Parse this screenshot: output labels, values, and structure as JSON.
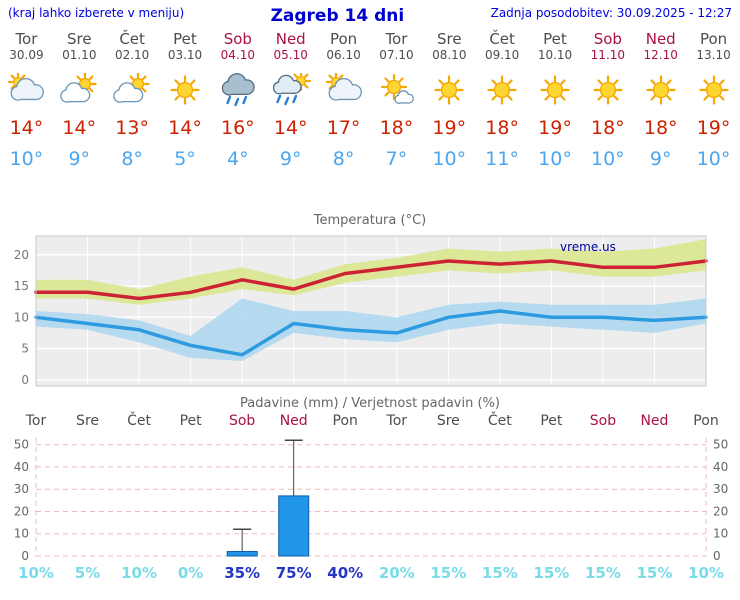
{
  "header": {
    "menu_hint": "(kraj lahko izberete v meniju)",
    "title": "Zagreb 14 dni",
    "last_update": "Zadnja posodobitev: 30.09.2025 - 12:27"
  },
  "colors": {
    "header_blue": "#0000e0",
    "title_blue": "#0000cc",
    "day_gray": "#4d4d4d",
    "weekend_red": "#aa1144",
    "max_red": "#cc2200",
    "min_blue": "#4aa6f0",
    "percent_light": "#7adce8",
    "percent_dark": "#2636c4",
    "temp_line_red": "#cc2233",
    "temp_line_blue": "#2e9ae0",
    "band_yellow": "#dce897",
    "band_blue": "#a6d4f0",
    "bar_fill": "#2196e8",
    "bar_stroke": "#0d5fa8",
    "grid_pink": "#f2b8b8",
    "watermark_navy": "#000099"
  },
  "forecast_days": [
    {
      "name": "Tor",
      "date": "30.09",
      "weekend": false,
      "icon": "cloudy",
      "tmax": "14°",
      "tmin": "10°"
    },
    {
      "name": "Sre",
      "date": "01.10",
      "weekend": false,
      "icon": "partly-cloudy",
      "tmax": "14°",
      "tmin": "9°"
    },
    {
      "name": "Čet",
      "date": "02.10",
      "weekend": false,
      "icon": "partly-cloudy",
      "tmax": "13°",
      "tmin": "8°"
    },
    {
      "name": "Pet",
      "date": "03.10",
      "weekend": false,
      "icon": "sunny",
      "tmax": "14°",
      "tmin": "5°"
    },
    {
      "name": "Sob",
      "date": "04.10",
      "weekend": true,
      "icon": "rain",
      "tmax": "16°",
      "tmin": "4°"
    },
    {
      "name": "Ned",
      "date": "05.10",
      "weekend": true,
      "icon": "showers",
      "tmax": "14°",
      "tmin": "9°"
    },
    {
      "name": "Pon",
      "date": "06.10",
      "weekend": false,
      "icon": "cloudy",
      "tmax": "17°",
      "tmin": "8°"
    },
    {
      "name": "Tor",
      "date": "07.10",
      "weekend": false,
      "icon": "mostly-sunny",
      "tmax": "18°",
      "tmin": "7°"
    },
    {
      "name": "Sre",
      "date": "08.10",
      "weekend": false,
      "icon": "sunny",
      "tmax": "19°",
      "tmin": "10°"
    },
    {
      "name": "Čet",
      "date": "09.10",
      "weekend": false,
      "icon": "sunny",
      "tmax": "18°",
      "tmin": "11°"
    },
    {
      "name": "Pet",
      "date": "10.10",
      "weekend": false,
      "icon": "sunny",
      "tmax": "19°",
      "tmin": "10°"
    },
    {
      "name": "Sob",
      "date": "11.10",
      "weekend": true,
      "icon": "sunny",
      "tmax": "18°",
      "tmin": "10°"
    },
    {
      "name": "Ned",
      "date": "12.10",
      "weekend": true,
      "icon": "sunny",
      "tmax": "18°",
      "tmin": "9°"
    },
    {
      "name": "Pon",
      "date": "13.10",
      "weekend": false,
      "icon": "sunny",
      "tmax": "19°",
      "tmin": "10°"
    }
  ],
  "chart_data": [
    {
      "type": "area",
      "title": "Temperatura (°C)",
      "categories": [
        "Tor",
        "Sre",
        "Čet",
        "Pet",
        "Sob",
        "Ned",
        "Pon",
        "Tor",
        "Sre",
        "Čet",
        "Pet",
        "Sob",
        "Ned",
        "Pon"
      ],
      "series": [
        {
          "name": "max",
          "values": [
            14,
            14,
            13,
            14,
            16,
            14.5,
            17,
            18,
            19,
            18.5,
            19,
            18,
            18,
            19
          ]
        },
        {
          "name": "min",
          "values": [
            10,
            9,
            8,
            5.5,
            4,
            9,
            8,
            7.5,
            10,
            11,
            10,
            10,
            9.5,
            10
          ]
        },
        {
          "name": "max_band_upper",
          "values": [
            16,
            16,
            14.5,
            16.5,
            18,
            16,
            18.5,
            19.5,
            21,
            20.5,
            21,
            20.5,
            21,
            22.5
          ]
        },
        {
          "name": "max_band_lower",
          "values": [
            13,
            13,
            12,
            13,
            14.5,
            13.5,
            15.5,
            16.5,
            17.5,
            17,
            17.5,
            16.5,
            16.5,
            17.5
          ]
        },
        {
          "name": "min_band_upper",
          "values": [
            11,
            10.5,
            9.5,
            7,
            13,
            11,
            11,
            10,
            12,
            12.5,
            12,
            12,
            12,
            13
          ]
        },
        {
          "name": "min_band_lower",
          "values": [
            8.5,
            8,
            6,
            3.5,
            3,
            7.5,
            6.5,
            6,
            8,
            9,
            8.5,
            8,
            7.5,
            9
          ]
        }
      ],
      "ylim": [
        -1,
        23
      ],
      "yticks": [
        0,
        5,
        10,
        15,
        20
      ],
      "grid": true,
      "watermark": "vreme.us"
    },
    {
      "type": "bar",
      "title": "Padavine (mm) / Verjetnost padavin (%)",
      "categories": [
        "Tor",
        "Sre",
        "Čet",
        "Pet",
        "Sob",
        "Ned",
        "Pon",
        "Tor",
        "Sre",
        "Čet",
        "Pet",
        "Sob",
        "Ned",
        "Pon"
      ],
      "precip_mm": [
        0,
        0,
        0,
        0,
        2,
        27,
        0,
        0,
        0,
        0,
        0,
        0,
        0,
        0
      ],
      "precip_max_mm": [
        0,
        0,
        0,
        0,
        12,
        52,
        0,
        0,
        0,
        0,
        0,
        0,
        0,
        0
      ],
      "probabilities": [
        {
          "label": "10%",
          "tone": "light"
        },
        {
          "label": "5%",
          "tone": "light"
        },
        {
          "label": "10%",
          "tone": "light"
        },
        {
          "label": "0%",
          "tone": "light"
        },
        {
          "label": "35%",
          "tone": "dark"
        },
        {
          "label": "75%",
          "tone": "dark"
        },
        {
          "label": "40%",
          "tone": "dark"
        },
        {
          "label": "20%",
          "tone": "light"
        },
        {
          "label": "15%",
          "tone": "light"
        },
        {
          "label": "15%",
          "tone": "light"
        },
        {
          "label": "15%",
          "tone": "light"
        },
        {
          "label": "15%",
          "tone": "light"
        },
        {
          "label": "15%",
          "tone": "light"
        },
        {
          "label": "10%",
          "tone": "light"
        }
      ],
      "ylim": [
        0,
        53
      ],
      "yticks": [
        0,
        10,
        20,
        30,
        40,
        50
      ],
      "grid": true
    }
  ]
}
